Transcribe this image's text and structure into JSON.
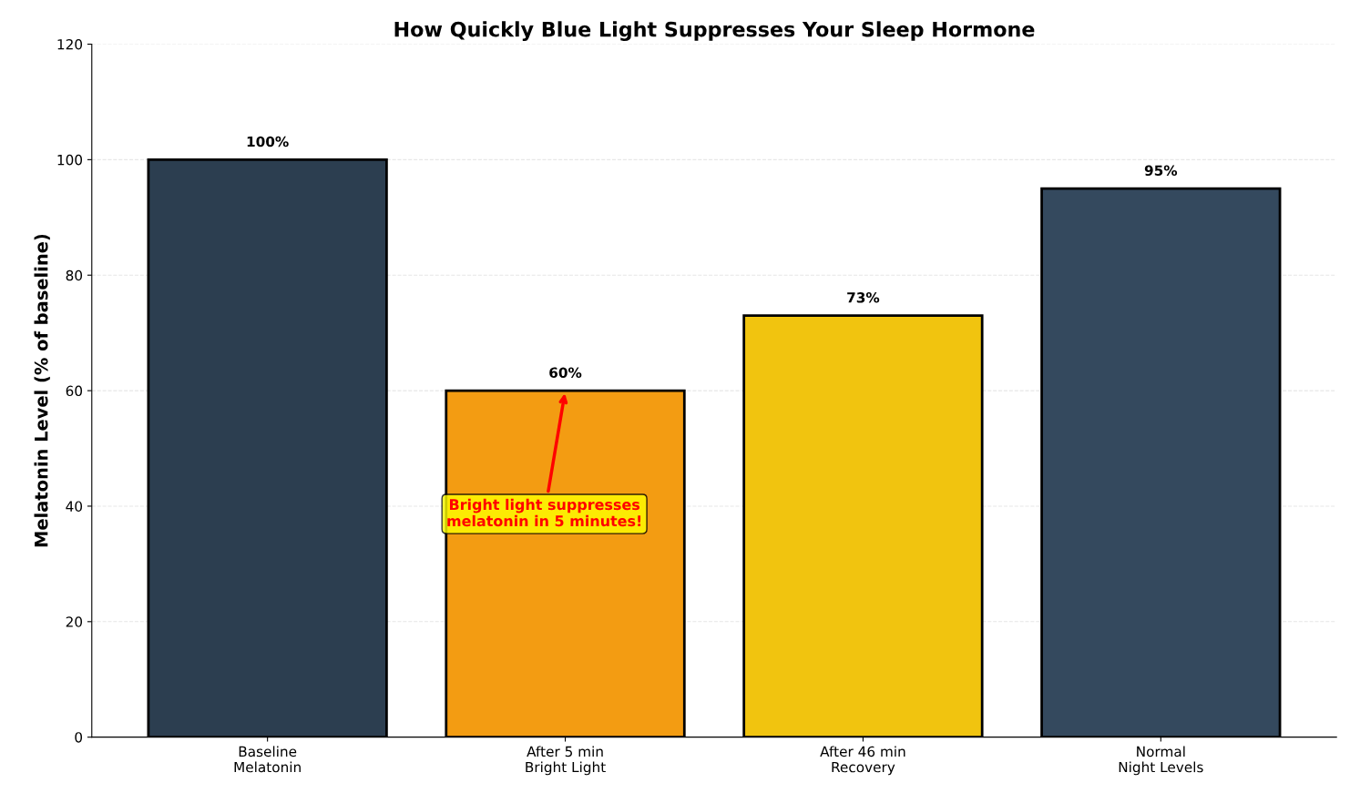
{
  "chart_data": {
    "type": "bar",
    "title": "How Quickly Blue Light Suppresses Your Sleep Hormone",
    "ylabel": "Melatonin Level (% of baseline)",
    "categories": [
      "Baseline\nMelatonin",
      "After 5 min\nBright Light",
      "After 46 min\nRecovery",
      "Normal\nNight Levels"
    ],
    "values": [
      100,
      60,
      73,
      95
    ],
    "colors": [
      "#2c3e50",
      "#f39c12",
      "#f1c40f",
      "#34495e"
    ],
    "value_labels": [
      "100%",
      "60%",
      "73%",
      "95%"
    ],
    "ylim": [
      0,
      120
    ],
    "yticks": [
      0,
      20,
      40,
      60,
      80,
      100,
      120
    ],
    "grid": "y",
    "annotations": [
      {
        "text": "Bright light suppresses\nmelatonin in 5 minutes!",
        "x": "After 5 min\nBright Light",
        "y": 60
      }
    ]
  }
}
